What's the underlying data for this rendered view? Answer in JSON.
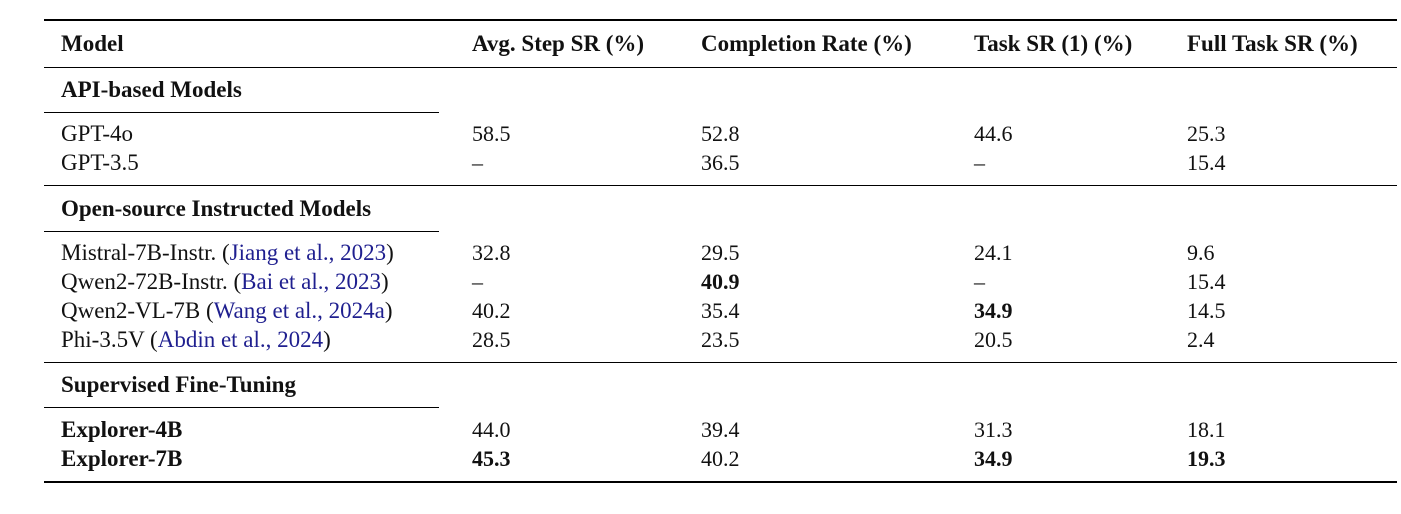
{
  "table": {
    "headers": [
      "Model",
      "Avg. Step SR (%)",
      "Completion Rate (%)",
      "Task SR (1) (%)",
      "Full Task SR (%)"
    ],
    "groups": [
      {
        "title": "API-based Models",
        "rows": [
          {
            "model": "GPT-4o",
            "cite": "",
            "model_bold": false,
            "values": [
              "58.5",
              "52.8",
              "44.6",
              "25.3"
            ],
            "bold": [
              false,
              false,
              false,
              false
            ]
          },
          {
            "model": "GPT-3.5",
            "cite": "",
            "model_bold": false,
            "values": [
              "–",
              "36.5",
              "–",
              "15.4"
            ],
            "bold": [
              false,
              false,
              false,
              false
            ]
          }
        ]
      },
      {
        "title": "Open-source Instructed Models",
        "rows": [
          {
            "model": "Mistral-7B-Instr. (",
            "cite": "Jiang et al., 2023",
            "model_bold": false,
            "values": [
              "32.8",
              "29.5",
              "24.1",
              "9.6"
            ],
            "bold": [
              false,
              false,
              false,
              false
            ]
          },
          {
            "model": "Qwen2-72B-Instr. (",
            "cite": "Bai et al., 2023",
            "model_bold": false,
            "values": [
              "–",
              "40.9",
              "–",
              "15.4"
            ],
            "bold": [
              false,
              true,
              false,
              false
            ]
          },
          {
            "model": "Qwen2-VL-7B (",
            "cite": "Wang et al., 2024a",
            "model_bold": false,
            "values": [
              "40.2",
              "35.4",
              "34.9",
              "14.5"
            ],
            "bold": [
              false,
              false,
              true,
              false
            ]
          },
          {
            "model": "Phi-3.5V (",
            "cite": "Abdin et al., 2024",
            "model_bold": false,
            "values": [
              "28.5",
              "23.5",
              "20.5",
              "2.4"
            ],
            "bold": [
              false,
              false,
              false,
              false
            ]
          }
        ]
      },
      {
        "title": "Supervised Fine-Tuning",
        "rows": [
          {
            "model": "Explorer-4B",
            "cite": "",
            "model_bold": true,
            "values": [
              "44.0",
              "39.4",
              "31.3",
              "18.1"
            ],
            "bold": [
              false,
              false,
              false,
              false
            ]
          },
          {
            "model": "Explorer-7B",
            "cite": "",
            "model_bold": true,
            "values": [
              "45.3",
              "40.2",
              "34.9",
              "19.3"
            ],
            "bold": [
              true,
              false,
              true,
              true
            ]
          }
        ]
      }
    ]
  }
}
